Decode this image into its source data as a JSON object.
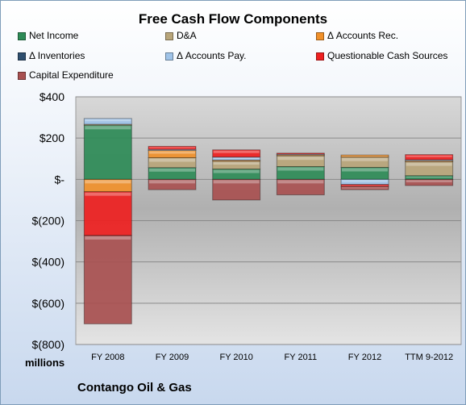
{
  "chart_data": {
    "type": "bar",
    "stacked": true,
    "title": "Free Cash Flow Components",
    "company": "Contango Oil & Gas",
    "unit_label": "millions",
    "categories": [
      "FY 2008",
      "FY 2009",
      "FY 2010",
      "FY 2011",
      "FY 2012",
      "TTM 9-2012"
    ],
    "ylim": [
      -800,
      400
    ],
    "yticks": [
      {
        "value": 400,
        "label": "$400"
      },
      {
        "value": 200,
        "label": "$200"
      },
      {
        "value": 0,
        "label": "$-"
      },
      {
        "value": -200,
        "label": "$(200)"
      },
      {
        "value": -400,
        "label": "$(400)"
      },
      {
        "value": -600,
        "label": "$(600)"
      },
      {
        "value": -800,
        "label": "$(800)"
      }
    ],
    "grid": true,
    "legend_position": "top",
    "series": [
      {
        "name": "Net Income",
        "color": "#2e8b57",
        "values": [
          262,
          57,
          50,
          62,
          58,
          18
        ]
      },
      {
        "name": "D&A",
        "color": "#b8a57a",
        "values": [
          5,
          48,
          38,
          52,
          50,
          67
        ]
      },
      {
        "name": "Δ Accounts Rec.",
        "color": "#f0902a",
        "values": [
          -60,
          35,
          5,
          5,
          10,
          5
        ]
      },
      {
        "name": "Δ Inventories",
        "color": "#2f4f6f",
        "values": [
          0,
          0,
          0,
          0,
          0,
          0
        ]
      },
      {
        "name": "Δ Accounts Pay.",
        "color": "#9fc3e8",
        "values": [
          28,
          5,
          15,
          3,
          -25,
          5
        ]
      },
      {
        "name": "Questionable Cash Sources",
        "color": "#ee2020",
        "values": [
          -212,
          15,
          35,
          5,
          -10,
          25
        ]
      },
      {
        "name": "Capital Expenditure",
        "color": "#a85050",
        "values": [
          -428,
          -50,
          -100,
          -75,
          -15,
          -30
        ]
      }
    ]
  }
}
